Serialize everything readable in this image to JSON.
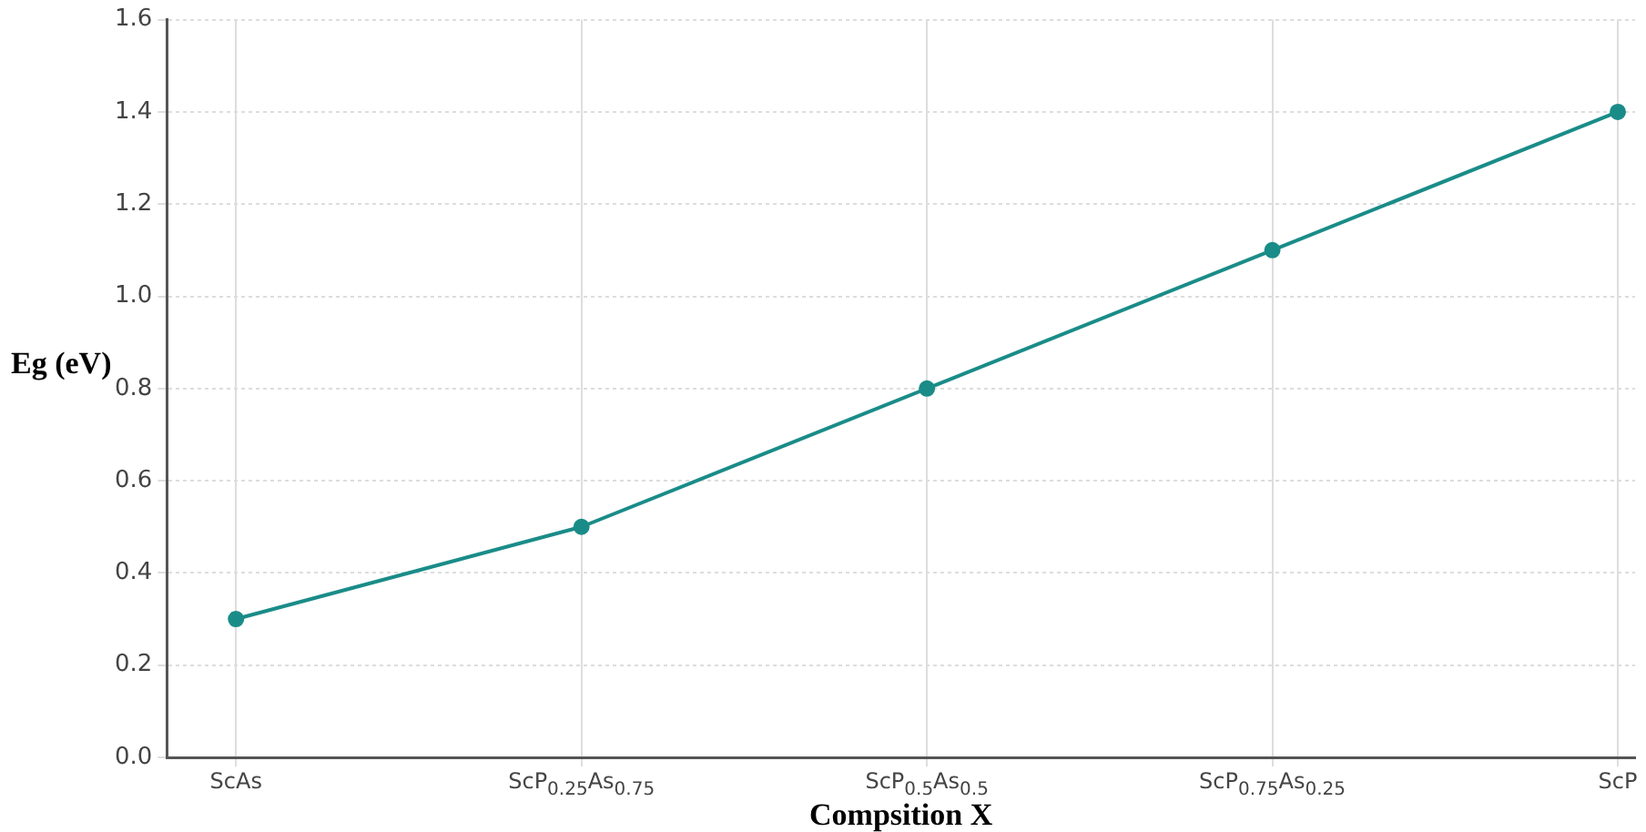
{
  "chart_data": {
    "type": "line",
    "xlabel": "Compsition X",
    "ylabel": "Eg (eV)",
    "categories": [
      "ScAs",
      "ScP$_{0.25}$As$_{0.75}$",
      "ScP$_{0.5}$As$_{0.5}$",
      "ScP$_{0.75}$As$_{0.25}$",
      "ScP"
    ],
    "series": [
      {
        "color": "#1a8c88",
        "values": [
          0.3,
          0.5,
          0.8,
          1.1,
          1.4
        ]
      }
    ],
    "ylim": [
      0,
      1.6
    ],
    "yticks": [
      {
        "value": 0,
        "label": "0.0"
      },
      0.2,
      0.4,
      0.6,
      0.8,
      {
        "value": 1,
        "label": "1.0"
      },
      1.2,
      1.4,
      1.6
    ],
    "grid": true,
    "legend": false,
    "marker": "circle",
    "line_style": "solid"
  }
}
